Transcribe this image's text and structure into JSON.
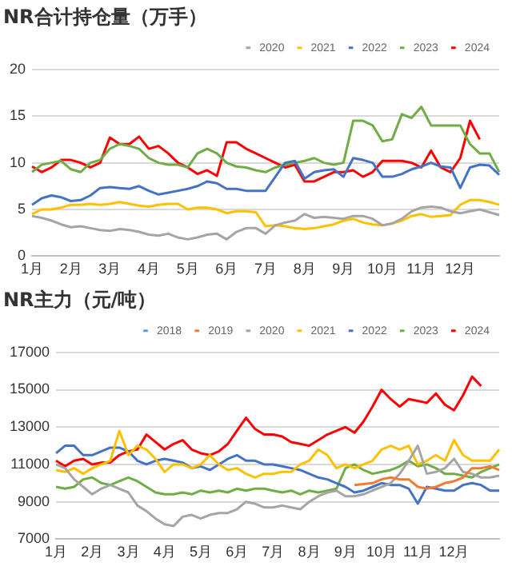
{
  "chart_data": [
    {
      "type": "line",
      "title": "NR合计持仓量（万手）",
      "categories": [
        "1月",
        null,
        null,
        null,
        "2月",
        null,
        null,
        null,
        "3月",
        null,
        null,
        null,
        "4月",
        null,
        null,
        null,
        "5月",
        null,
        null,
        null,
        "6月",
        null,
        null,
        null,
        "7月",
        null,
        null,
        null,
        "8月",
        null,
        null,
        null,
        "9月",
        null,
        null,
        null,
        "10月",
        null,
        null,
        null,
        "11月",
        null,
        null,
        null,
        "12月",
        null,
        null,
        null,
        null
      ],
      "series": [
        {
          "name": "2020",
          "color": "#a5a5a5",
          "values": [
            4.3,
            4.1,
            3.8,
            3.4,
            3.1,
            3.2,
            3.0,
            2.8,
            2.7,
            2.9,
            2.8,
            2.6,
            2.3,
            2.2,
            2.4,
            2.0,
            1.8,
            2.0,
            2.3,
            2.4,
            1.8,
            2.6,
            3.0,
            3.0,
            2.4,
            3.3,
            3.6,
            3.8,
            4.5,
            4.1,
            4.2,
            4.1,
            4.0,
            4.3,
            4.3,
            4.0,
            3.3,
            3.5,
            4.0,
            4.8,
            5.2,
            5.3,
            5.2,
            4.8,
            4.6,
            4.8,
            5.0,
            4.7,
            4.4
          ]
        },
        {
          "name": "2021",
          "color": "#ffc000",
          "values": [
            4.5,
            5.0,
            5.0,
            5.2,
            5.5,
            5.5,
            5.6,
            5.5,
            5.6,
            5.8,
            5.6,
            5.4,
            5.3,
            5.5,
            5.6,
            5.6,
            5.0,
            5.2,
            5.2,
            5.0,
            4.6,
            4.8,
            4.8,
            4.7,
            3.2,
            3.3,
            3.2,
            3.0,
            2.9,
            3.0,
            3.2,
            3.4,
            3.8,
            4.0,
            3.6,
            3.4,
            3.3,
            3.5,
            3.8,
            4.3,
            4.5,
            4.2,
            4.3,
            4.4,
            5.5,
            6.0,
            6.0,
            5.8,
            5.5
          ]
        },
        {
          "name": "2022",
          "color": "#4472c4",
          "values": [
            5.5,
            6.2,
            6.5,
            6.3,
            5.9,
            6.0,
            6.5,
            7.3,
            7.4,
            7.3,
            7.2,
            7.5,
            7.0,
            6.6,
            6.8,
            7.0,
            7.2,
            7.5,
            8.0,
            7.8,
            7.2,
            7.2,
            7.0,
            7.0,
            7.0,
            8.5,
            10.0,
            10.2,
            8.3,
            9.0,
            9.2,
            9.3,
            8.5,
            10.5,
            10.3,
            10.0,
            8.5,
            8.5,
            8.8,
            9.3,
            9.6,
            10.0,
            9.6,
            9.5,
            7.3,
            9.5,
            9.8,
            9.7,
            8.7
          ]
        },
        {
          "name": "2023",
          "color": "#70ad47",
          "values": [
            9.0,
            9.8,
            10.0,
            10.2,
            9.3,
            9.0,
            10.0,
            10.3,
            11.5,
            12.0,
            11.8,
            11.5,
            10.5,
            10.0,
            9.8,
            9.8,
            9.5,
            11.0,
            11.5,
            11.0,
            10.0,
            9.6,
            9.5,
            9.2,
            9.0,
            9.5,
            9.8,
            10.0,
            10.2,
            10.5,
            10.0,
            9.8,
            10.0,
            14.5,
            14.5,
            14.0,
            12.3,
            12.5,
            15.2,
            14.8,
            16.0,
            14.0,
            14.0,
            14.0,
            14.0,
            12.0,
            11.0,
            11.0,
            9.0
          ]
        },
        {
          "name": "2024",
          "color": "#ff0000",
          "values": [
            9.6,
            9.0,
            9.5,
            10.3,
            10.3,
            10.0,
            9.5,
            10.0,
            12.7,
            12.0,
            12.0,
            12.8,
            11.5,
            11.8,
            11.0,
            10.0,
            9.5,
            8.8,
            9.2,
            8.6,
            12.2,
            12.2,
            11.5,
            11.0,
            10.5,
            10.0,
            9.5,
            9.8,
            8.0,
            8.0,
            8.5,
            9.0,
            9.0,
            9.2,
            8.5,
            9.0,
            10.2,
            10.2,
            10.2,
            10.0,
            9.5,
            11.3,
            9.5,
            9.0,
            10.5,
            14.5,
            12.5,
            null,
            null
          ]
        }
      ],
      "ylim": [
        0,
        20
      ],
      "yticks": [
        0,
        5,
        10,
        15,
        20
      ],
      "grid": "y",
      "legend": "top",
      "marker": "none"
    },
    {
      "type": "line",
      "title": "NR主力（元/吨）",
      "categories": [
        "1月",
        null,
        null,
        null,
        "2月",
        null,
        null,
        null,
        "3月",
        null,
        null,
        null,
        "4月",
        null,
        null,
        null,
        "5月",
        null,
        null,
        null,
        "6月",
        null,
        null,
        null,
        "7月",
        null,
        null,
        null,
        "8月",
        null,
        null,
        null,
        "9月",
        null,
        null,
        null,
        "10月",
        null,
        null,
        null,
        "11月",
        null,
        null,
        null,
        "12月",
        null,
        null,
        null,
        null,
        null
      ],
      "series": [
        {
          "name": "2018",
          "color": "#5b9bd5",
          "values": [
            null,
            null,
            null,
            null,
            null,
            null,
            null,
            null,
            null,
            null,
            null,
            null,
            null,
            null,
            null,
            null,
            null,
            null,
            null,
            null,
            null,
            null,
            null,
            null,
            null,
            null,
            null,
            null,
            null,
            null,
            null,
            null,
            null,
            null,
            null,
            null,
            null,
            null,
            null,
            null,
            null,
            null,
            null,
            null,
            null,
            null,
            null,
            null,
            null,
            null
          ]
        },
        {
          "name": "2019",
          "color": "#ed7d31",
          "values": [
            null,
            null,
            null,
            null,
            null,
            null,
            null,
            null,
            null,
            null,
            null,
            null,
            null,
            null,
            null,
            null,
            null,
            null,
            null,
            null,
            null,
            null,
            null,
            null,
            null,
            null,
            null,
            null,
            null,
            null,
            null,
            null,
            null,
            9900,
            9950,
            10000,
            10200,
            10300,
            10200,
            10200,
            9800,
            9700,
            9800,
            10000,
            10100,
            10300,
            10800,
            10800,
            10900,
            10700
          ]
        },
        {
          "name": "2020",
          "color": "#a5a5a5",
          "values": [
            11000,
            10800,
            10200,
            9800,
            9400,
            9700,
            9900,
            9700,
            9500,
            8800,
            8500,
            8100,
            7800,
            7700,
            8200,
            8300,
            8100,
            8300,
            8400,
            8400,
            8600,
            9000,
            8900,
            8700,
            8700,
            8800,
            8700,
            8600,
            9000,
            9300,
            9500,
            9600,
            9300,
            9300,
            9400,
            9600,
            9800,
            10000,
            10500,
            11200,
            12000,
            10500,
            10600,
            10800,
            11300,
            10600,
            10500,
            10300,
            10300,
            10400
          ]
        },
        {
          "name": "2021",
          "color": "#ffc000",
          "values": [
            10700,
            10600,
            10800,
            10500,
            10800,
            11000,
            11200,
            12800,
            11500,
            12000,
            11800,
            11300,
            10600,
            11000,
            11000,
            10800,
            11000,
            11500,
            11000,
            10700,
            10800,
            10500,
            10300,
            10500,
            10500,
            10600,
            10600,
            11000,
            11200,
            11800,
            11500,
            10800,
            11000,
            10800,
            11000,
            11200,
            11800,
            12000,
            11800,
            12000,
            11000,
            11200,
            11500,
            11200,
            12300,
            11500,
            11200,
            11200,
            11200,
            11800
          ]
        },
        {
          "name": "2022",
          "color": "#4472c4",
          "values": [
            11600,
            12000,
            12000,
            11500,
            11500,
            11700,
            11900,
            11900,
            11700,
            11200,
            11000,
            11200,
            11300,
            11200,
            11100,
            10800,
            10900,
            10700,
            11000,
            11300,
            11500,
            11200,
            11200,
            11000,
            11000,
            10900,
            10800,
            10700,
            10500,
            10300,
            10200,
            10000,
            9800,
            9500,
            9600,
            9800,
            10000,
            9900,
            9900,
            9700,
            8900,
            9800,
            9700,
            9600,
            9600,
            9900,
            10000,
            9900,
            9600,
            9600
          ]
        },
        {
          "name": "2023",
          "color": "#70ad47",
          "values": [
            9800,
            9700,
            9800,
            10200,
            10300,
            10000,
            9900,
            10100,
            10300,
            10100,
            9800,
            9500,
            9400,
            9400,
            9500,
            9400,
            9600,
            9500,
            9600,
            9500,
            9700,
            9600,
            9700,
            9700,
            9600,
            9500,
            9600,
            9400,
            9600,
            9500,
            9600,
            9700,
            10800,
            11000,
            10700,
            10500,
            10600,
            10700,
            10900,
            11200,
            10900,
            11000,
            10800,
            10500,
            10500,
            10400,
            10300,
            10600,
            10800,
            11000
          ]
        },
        {
          "name": "2024",
          "color": "#ff0000",
          "values": [
            11200,
            10900,
            11200,
            11300,
            11000,
            11100,
            11100,
            11500,
            11700,
            11800,
            12600,
            12200,
            11800,
            12100,
            12300,
            11800,
            11600,
            11500,
            11700,
            12100,
            12800,
            13500,
            12900,
            12600,
            12600,
            12500,
            12200,
            12100,
            12000,
            12300,
            12600,
            12800,
            13000,
            12700,
            13300,
            14100,
            15000,
            14500,
            14100,
            14500,
            14400,
            14300,
            14800,
            14200,
            13900,
            14700,
            15700,
            15200,
            null,
            null
          ]
        }
      ],
      "ylim": [
        7000,
        17000
      ],
      "yticks": [
        7000,
        9000,
        11000,
        13000,
        15000,
        17000
      ],
      "grid": "y",
      "legend": "top",
      "marker": "none"
    }
  ]
}
